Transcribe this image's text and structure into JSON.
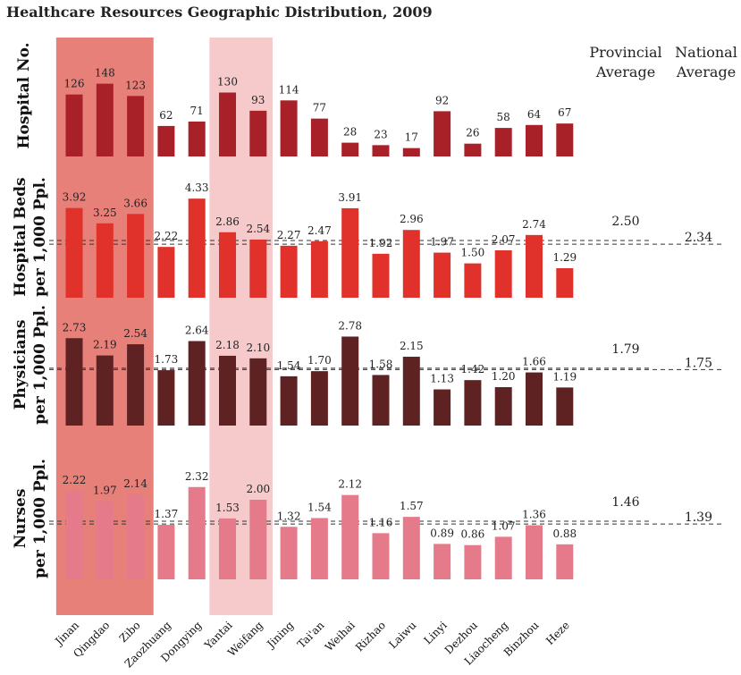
{
  "title": "Healthcare Resources Geographic Distribution, 2009",
  "headers": {
    "provincial": "Provincial Average",
    "national": "National Average"
  },
  "chart_data": {
    "type": "bar",
    "title": "Healthcare Resources Geographic Distribution, 2009",
    "categories": [
      "Jinan",
      "Qingdao",
      "Zibo",
      "Zaozhuang",
      "Dongying",
      "Yantai",
      "Weifang",
      "Jining",
      "Tai'an",
      "Weihai",
      "Rizhao",
      "Laiwu",
      "Linyi",
      "Dezhou",
      "Liaocheng",
      "Binzhou",
      "Heze"
    ],
    "highlight_groups": [
      {
        "cities": [
          "Jinan",
          "Qingdao",
          "Zibo"
        ],
        "color": "#e8807a"
      },
      {
        "cities": [
          "Yantai",
          "Weifang"
        ],
        "color": "#f6c9cb"
      }
    ],
    "series": [
      {
        "name": "Hospital No.",
        "color": "#a82128",
        "values": [
          126,
          148,
          123,
          62,
          71,
          130,
          93,
          114,
          77,
          28,
          23,
          17,
          92,
          26,
          58,
          64,
          67
        ],
        "labels": [
          "126",
          "148",
          "123",
          "62",
          "71",
          "130",
          "93",
          "114",
          "77",
          "28",
          "23",
          "17",
          "92",
          "26",
          "58",
          "64",
          "67"
        ],
        "provincial_average": null,
        "national_average": null
      },
      {
        "name": "Hospital Beds per 1,000 Ppl.",
        "color": "#e0312a",
        "values": [
          3.92,
          3.25,
          3.66,
          2.22,
          4.33,
          2.86,
          2.54,
          2.27,
          2.47,
          3.91,
          1.92,
          2.96,
          1.97,
          1.5,
          2.07,
          2.74,
          1.29
        ],
        "labels": [
          "3.92",
          "3.25",
          "3.66",
          "2.22",
          "4.33",
          "2.86",
          "2.54",
          "2.27",
          "2.47",
          "3.91",
          "1.92",
          "2.96",
          "1.97",
          "1.50",
          "2.07",
          "2.74",
          "1.29"
        ],
        "provincial_average": 2.5,
        "provincial_average_label": "2.50",
        "national_average": 2.34,
        "national_average_label": "2.34"
      },
      {
        "name": "Physicians per 1,000 Ppl.",
        "color": "#5e2222",
        "values": [
          2.73,
          2.19,
          2.54,
          1.73,
          2.64,
          2.18,
          2.1,
          1.54,
          1.7,
          2.78,
          1.58,
          2.15,
          1.13,
          1.42,
          1.2,
          1.66,
          1.19
        ],
        "labels": [
          "2.73",
          "2.19",
          "2.54",
          "1.73",
          "2.64",
          "2.18",
          "2.10",
          "1.54",
          "1.70",
          "2.78",
          "1.58",
          "2.15",
          "1.13",
          "1.42",
          "1.20",
          "1.66",
          "1.19"
        ],
        "provincial_average": 1.79,
        "provincial_average_label": "1.79",
        "national_average": 1.75,
        "national_average_label": "1.75"
      },
      {
        "name": "Nurses per 1,000 Ppl.",
        "color": "#e57a8a",
        "values": [
          2.22,
          1.97,
          2.14,
          1.37,
          2.32,
          1.53,
          2.0,
          1.32,
          1.54,
          2.12,
          1.16,
          1.57,
          0.89,
          0.86,
          1.07,
          1.36,
          0.88
        ],
        "labels": [
          "2.22",
          "1.97",
          "2.14",
          "1.37",
          "2.32",
          "1.53",
          "2.00",
          "1.32",
          "1.54",
          "2.12",
          "1.16",
          "1.57",
          "0.89",
          "0.86",
          "1.07",
          "1.36",
          "0.88"
        ],
        "provincial_average": 1.46,
        "provincial_average_label": "1.46",
        "national_average": 1.39,
        "national_average_label": "1.39"
      }
    ]
  }
}
